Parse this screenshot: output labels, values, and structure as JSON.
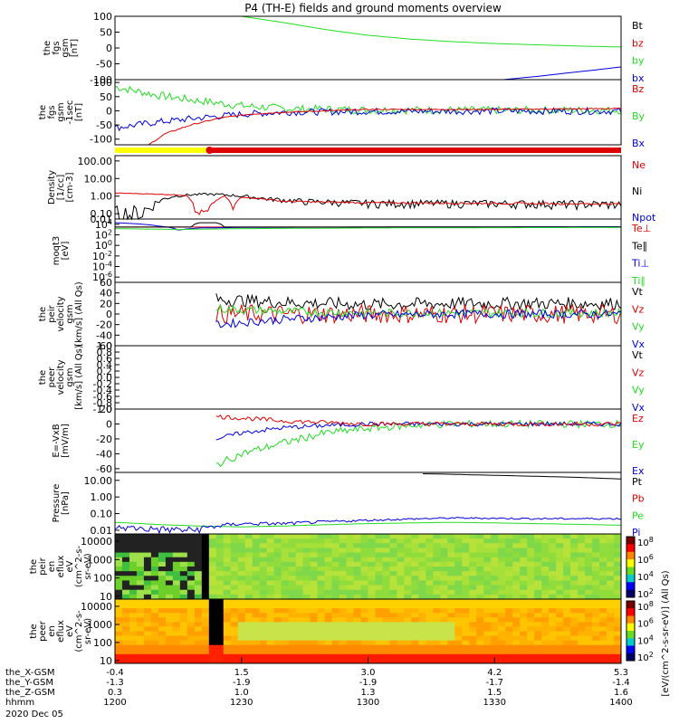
{
  "title": "P4 (TH-E) fields and ground moments overview",
  "colors": {
    "black": "#000000",
    "red": "#dd0000",
    "green": "#22dd22",
    "blue": "#0000dd",
    "yellow": "#ffff00"
  },
  "x_axis": {
    "time_ticks": [
      "1200",
      "1230",
      "1300",
      "1330",
      "1400"
    ],
    "time_range_min": [
      0,
      120
    ],
    "rows": [
      {
        "label": "the_X-GSM",
        "values": [
          "-0.4",
          "1.5",
          "3.0",
          "4.2",
          "5.3"
        ]
      },
      {
        "label": "the_Y-GSM",
        "values": [
          "-1.3",
          "-1.9",
          "-1.9",
          "-1.7",
          "-1.4"
        ]
      },
      {
        "label": "the_Z-GSM",
        "values": [
          "0.3",
          "1.0",
          "1.3",
          "1.5",
          "1.6"
        ]
      },
      {
        "label": "hhmm",
        "values": [
          "1200",
          "1230",
          "1300",
          "1330",
          "1400"
        ]
      }
    ],
    "date": "2020 Dec 05"
  },
  "colorbar": {
    "label": "[eV/(cm^2-s-sr-eV)] (All Qs)",
    "top_ticks": [
      "10^8",
      "10^6",
      "10^4",
      "10^2"
    ],
    "bottom_ticks": [
      "10^8",
      "10^6",
      "10^4",
      "10^2"
    ]
  },
  "chart_data": [
    {
      "id": "fgs",
      "type": "line",
      "ylabel": [
        "the",
        "fgs",
        "gsm",
        "[nT]"
      ],
      "ylim": [
        -100,
        100
      ],
      "yticks": [
        "100",
        "50",
        "0",
        "-50",
        "-100"
      ],
      "yscale": "linear",
      "legend": [
        {
          "text": "Bt",
          "color": "black"
        },
        {
          "text": "bz",
          "color": "red"
        },
        {
          "text": "by",
          "color": "green"
        },
        {
          "text": "bx",
          "color": "blue"
        }
      ],
      "series": [
        {
          "name": "by",
          "color": "green",
          "x": [
            30,
            40,
            50,
            60,
            70,
            80,
            90,
            100,
            110,
            120
          ],
          "y": [
            100,
            80,
            58,
            40,
            28,
            20,
            14,
            10,
            6,
            3
          ]
        },
        {
          "name": "bx",
          "color": "blue",
          "x": [
            92,
            100,
            110,
            120
          ],
          "y": [
            -100,
            -90,
            -75,
            -60
          ]
        }
      ]
    },
    {
      "id": "fgs_despun",
      "type": "line",
      "ylabel": [
        "the",
        "fgs",
        "gsm",
        "-1sec",
        "[nT]"
      ],
      "ylim": [
        -120,
        110
      ],
      "yticks": [
        "100",
        "50",
        "0",
        "-50",
        "-100"
      ],
      "yscale": "linear",
      "legend": [
        {
          "text": "Bz",
          "color": "red"
        },
        {
          "text": "By",
          "color": "green"
        },
        {
          "text": "Bx",
          "color": "blue"
        }
      ],
      "series": [
        {
          "name": "By",
          "color": "green",
          "x": [
            0,
            5,
            10,
            20,
            30,
            40,
            60,
            90,
            120
          ],
          "y": [
            85,
            70,
            55,
            35,
            18,
            8,
            3,
            2,
            2
          ],
          "noise": 14
        },
        {
          "name": "Bx",
          "color": "blue",
          "x": [
            0,
            5,
            10,
            20,
            30,
            40,
            60,
            90,
            120
          ],
          "y": [
            -60,
            -50,
            -40,
            -25,
            -12,
            -5,
            -2,
            -1,
            -1
          ],
          "noise": 12
        },
        {
          "name": "Bz",
          "color": "red",
          "x": [
            8,
            12,
            18,
            25,
            32,
            40,
            60,
            90,
            120
          ],
          "y": [
            -120,
            -80,
            -50,
            -25,
            -12,
            -5,
            5,
            5,
            8
          ],
          "noise": 2
        }
      ]
    },
    {
      "id": "mode_bar",
      "type": "bar",
      "segments": [
        {
          "from": 0,
          "to": 22,
          "color": "yellow"
        },
        {
          "from": 22,
          "to": 120,
          "color": "red"
        }
      ]
    },
    {
      "id": "density",
      "type": "line",
      "ylabel": [
        "Density",
        "[1/cc]",
        "[cm-3]"
      ],
      "ylim": [
        0.05,
        200
      ],
      "yticks": [
        "100.00",
        "10.00",
        "1.00",
        "0.10",
        "0.01"
      ],
      "yticks_log": [
        100,
        10,
        1,
        0.1,
        0.01
      ],
      "yscale": "log",
      "legend": [
        {
          "text": "Ne",
          "color": "red"
        },
        {
          "text": "Ni",
          "color": "black"
        },
        {
          "text": "Npot",
          "color": "blue"
        }
      ],
      "series": [
        {
          "name": "Ni",
          "color": "black",
          "x": [
            0,
            5,
            8,
            11,
            14,
            18,
            22,
            26,
            30,
            36,
            45,
            60,
            80,
            100,
            120
          ],
          "y": [
            0.08,
            0.1,
            0.2,
            0.6,
            1.0,
            1.2,
            1.3,
            1.2,
            1.0,
            0.7,
            0.5,
            0.4,
            0.4,
            0.38,
            0.35
          ],
          "noise": 0.2
        },
        {
          "name": "Ne",
          "color": "red",
          "x": [
            0,
            10,
            17,
            19,
            22,
            26,
            28,
            30,
            40,
            60,
            80,
            100,
            120
          ],
          "y": [
            1.5,
            1.3,
            1.1,
            0.12,
            0.12,
            1.0,
            0.15,
            0.9,
            0.5,
            0.42,
            0.4,
            0.38,
            0.36
          ],
          "noise": 0.05
        }
      ]
    },
    {
      "id": "temperature",
      "type": "line",
      "ylabel": [
        "moqt3",
        "[eV]"
      ],
      "ylim": [
        1e-07,
        100000
      ],
      "yticks": [
        "10^4",
        "10^2",
        "10^0",
        "10^-2",
        "10^-4",
        "10^-6"
      ],
      "yticks_log": [
        10000,
        100,
        1,
        0.01,
        0.0001,
        1e-06
      ],
      "yscale": "log",
      "legend": [
        {
          "text": "Te⊥",
          "color": "red"
        },
        {
          "text": "Te∥",
          "color": "black"
        },
        {
          "text": "Ti⊥",
          "color": "blue"
        },
        {
          "text": "Ti∥",
          "color": "green"
        }
      ],
      "series": [
        {
          "name": "Te",
          "color": "red",
          "x": [
            0,
            120
          ],
          "y": [
            3000,
            3000
          ]
        },
        {
          "name": "Ti",
          "color": "blue",
          "x": [
            0,
            10,
            15,
            20,
            30,
            60,
            120
          ],
          "y": [
            20000,
            5000,
            800,
            2000,
            2500,
            3000,
            3500
          ]
        },
        {
          "name": "Te2",
          "color": "black",
          "x": [
            0,
            18,
            20,
            24,
            26,
            60,
            120
          ],
          "y": [
            3000,
            3000,
            20000,
            20000,
            3000,
            3000,
            3000
          ]
        },
        {
          "name": "Ti2",
          "color": "green",
          "x": [
            0,
            15,
            30,
            60,
            120
          ],
          "y": [
            1500,
            1000,
            1500,
            2000,
            2500
          ]
        }
      ]
    },
    {
      "id": "peir_velocity",
      "type": "line",
      "ylabel": [
        "the",
        "peir",
        "velocity",
        "gsm",
        "[km/s] (All Qs)"
      ],
      "ylim": [
        -60,
        60
      ],
      "yticks": [
        "60",
        "40",
        "20",
        "0",
        "-20",
        "-40",
        "-60"
      ],
      "yscale": "linear",
      "legend": [
        {
          "text": "Vt",
          "color": "black"
        },
        {
          "text": "Vz",
          "color": "red"
        },
        {
          "text": "Vy",
          "color": "green"
        },
        {
          "text": "Vx",
          "color": "blue"
        }
      ],
      "series": [
        {
          "name": "Vt",
          "color": "black",
          "x": [
            24,
            40,
            60,
            80,
            100,
            120
          ],
          "y": [
            28,
            22,
            18,
            20,
            20,
            20
          ],
          "noise": 12
        },
        {
          "name": "Vz",
          "color": "red",
          "x": [
            24,
            40,
            60,
            80,
            100,
            120
          ],
          "y": [
            0,
            0,
            0,
            0,
            0,
            0
          ],
          "noise": 18
        },
        {
          "name": "Vy",
          "color": "green",
          "x": [
            24,
            40,
            60,
            80,
            100,
            120
          ],
          "y": [
            10,
            5,
            2,
            2,
            2,
            2
          ],
          "noise": 8
        },
        {
          "name": "Vx",
          "color": "blue",
          "x": [
            24,
            40,
            60,
            80,
            100,
            120
          ],
          "y": [
            -20,
            -10,
            -2,
            0,
            0,
            0
          ],
          "noise": 8
        }
      ]
    },
    {
      "id": "peer_velocity",
      "type": "line",
      "ylabel": [
        "the",
        "peer",
        "velocity",
        "gsm",
        "[km/s] (All Qs)"
      ],
      "ylim": [
        -1,
        1
      ],
      "yticks": [
        "1.0",
        "0.8",
        "0.6",
        "0.4",
        "0.2",
        "0.0",
        "-0.2",
        "-0.4",
        "-0.6",
        "-0.8",
        "-1.0"
      ],
      "yscale": "linear",
      "legend": [
        {
          "text": "Vt",
          "color": "black"
        },
        {
          "text": "Vz",
          "color": "red"
        },
        {
          "text": "Vy",
          "color": "green"
        },
        {
          "text": "Vx",
          "color": "blue"
        }
      ],
      "series": []
    },
    {
      "id": "efield",
      "type": "line",
      "ylabel": [
        "E=-VxB",
        "[mV/m]"
      ],
      "ylim": [
        -65,
        20
      ],
      "yticks": [
        "20",
        "0",
        "-20",
        "-40",
        "-60"
      ],
      "yscale": "linear",
      "legend": [
        {
          "text": "Ez",
          "color": "red"
        },
        {
          "text": "Ey",
          "color": "green"
        },
        {
          "text": "Ex",
          "color": "blue"
        }
      ],
      "series": [
        {
          "name": "Ey",
          "color": "green",
          "x": [
            24,
            30,
            40,
            50,
            60,
            70,
            80,
            100,
            120
          ],
          "y": [
            -55,
            -40,
            -25,
            -12,
            -6,
            -2,
            0,
            0,
            0
          ],
          "noise": 5
        },
        {
          "name": "Ex",
          "color": "blue",
          "x": [
            24,
            30,
            40,
            50,
            60,
            80,
            100,
            120
          ],
          "y": [
            -20,
            -12,
            -5,
            -2,
            0,
            0,
            0,
            0
          ],
          "noise": 3
        },
        {
          "name": "Ez",
          "color": "red",
          "x": [
            24,
            30,
            40,
            50,
            60,
            80,
            100,
            120
          ],
          "y": [
            10,
            8,
            4,
            2,
            0,
            0,
            0,
            0
          ],
          "noise": 3
        }
      ]
    },
    {
      "id": "pressure",
      "type": "line",
      "ylabel": [
        "Pressure",
        "[nPa]"
      ],
      "ylim": [
        0.006,
        30
      ],
      "yticks": [
        "10.00",
        "1.00",
        "0.10",
        "0.01"
      ],
      "yticks_log": [
        10,
        1,
        0.1,
        0.01
      ],
      "yscale": "log",
      "legend": [
        {
          "text": "Pt",
          "color": "black"
        },
        {
          "text": "Pb",
          "color": "red"
        },
        {
          "text": "Pe",
          "color": "green"
        },
        {
          "text": "Pi",
          "color": "blue"
        }
      ],
      "series": [
        {
          "name": "Pt",
          "color": "black",
          "x": [
            73,
            90,
            110,
            120
          ],
          "y": [
            25,
            20,
            15,
            12
          ]
        },
        {
          "name": "Pe",
          "color": "green",
          "x": [
            0,
            10,
            20,
            30,
            40,
            60,
            80,
            100,
            120
          ],
          "y": [
            0.03,
            0.022,
            0.018,
            0.016,
            0.018,
            0.025,
            0.03,
            0.025,
            0.02
          ]
        },
        {
          "name": "Pi",
          "color": "blue",
          "x": [
            0,
            10,
            18,
            22,
            30,
            40,
            60,
            80,
            100,
            120
          ],
          "y": [
            0.015,
            0.012,
            0.01,
            0.015,
            0.025,
            0.025,
            0.04,
            0.055,
            0.05,
            0.05
          ],
          "noise": 0.006
        }
      ]
    },
    {
      "id": "peir_spectrogram",
      "type": "heatmap",
      "ylabel": [
        "the",
        "peir",
        "en",
        "eflux",
        "eV",
        "(cm^2-s-",
        "sr-eV)"
      ],
      "ylim": [
        7,
        25000
      ],
      "yticks": [
        "10000",
        "1000",
        "100",
        "10"
      ],
      "yticks_log": [
        10000,
        1000,
        100,
        10
      ],
      "yscale": "log"
    },
    {
      "id": "peer_spectrogram",
      "type": "heatmap",
      "ylabel": [
        "the",
        "peer",
        "en",
        "eflux",
        "eV",
        "(cm^2-s-",
        "sr-eV)"
      ],
      "ylim": [
        7,
        25000
      ],
      "yticks": [
        "10000",
        "1000",
        "100",
        "10"
      ],
      "yticks_log": [
        10000,
        1000,
        100,
        10
      ],
      "yscale": "log"
    }
  ]
}
